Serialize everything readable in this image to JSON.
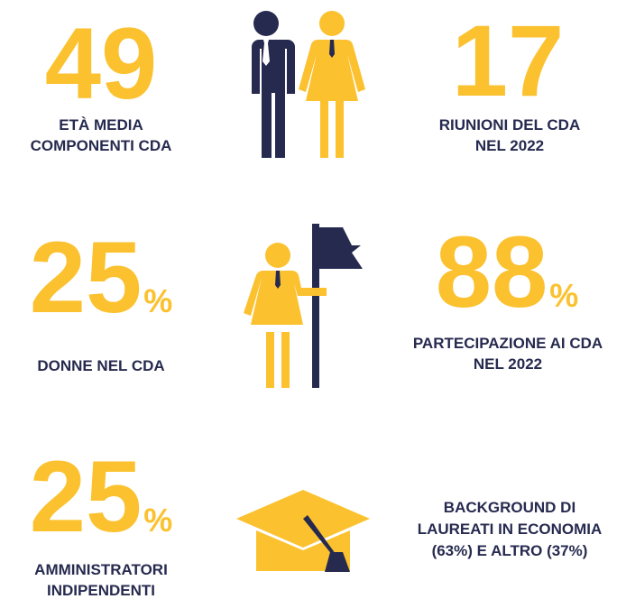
{
  "stats": [
    {
      "value": "49",
      "label": [
        "ETÀ MEDIA",
        "COMPONENTI CDA"
      ]
    },
    {
      "value": "17",
      "label": [
        "RIUNIONI DEL CDA",
        "NEL 2022"
      ]
    },
    {
      "value": "25",
      "unit": "%",
      "label": [
        "DONNE NEL CDA"
      ]
    },
    {
      "value": "88",
      "unit": "%",
      "label": [
        "PARTECIPAZIONE AI CDA",
        "NEL 2022"
      ]
    },
    {
      "value": "25",
      "unit": "%",
      "label": [
        "AMMINISTRATORI",
        "INDIPENDENTI"
      ]
    },
    {
      "label": [
        "BACKGROUND DI",
        "LAUREATI IN ECONOMIA",
        "(63%) E ALTRO (37%)"
      ]
    }
  ]
}
